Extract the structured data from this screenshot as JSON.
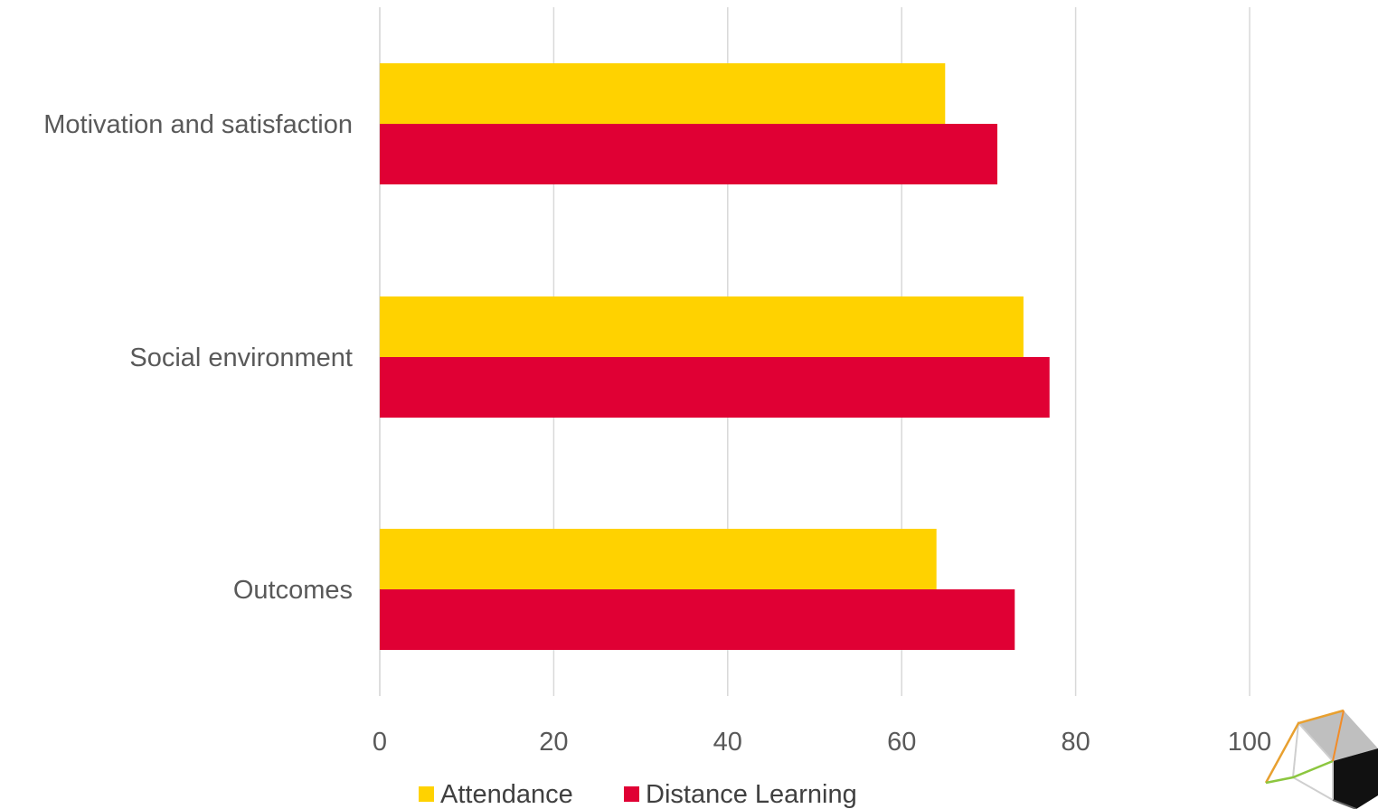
{
  "chart_data": {
    "type": "bar",
    "orientation": "horizontal",
    "title": "",
    "xlabel": "",
    "ylabel": "",
    "categories": [
      "Motivation and satisfaction",
      "Social environment",
      "Outcomes"
    ],
    "series": [
      {
        "name": "Attendance",
        "color": "#FFD200",
        "values": [
          65,
          74,
          64
        ]
      },
      {
        "name": "Distance Learning",
        "color": "#E00034",
        "values": [
          71,
          77,
          73
        ]
      }
    ],
    "xlim": [
      0,
      100
    ],
    "xticks": [
      "0",
      "20",
      "40",
      "60",
      "80",
      "100"
    ],
    "grid": "vertical",
    "legend": "bottom-center"
  },
  "logo": {
    "name": "cube-logo-icon"
  }
}
